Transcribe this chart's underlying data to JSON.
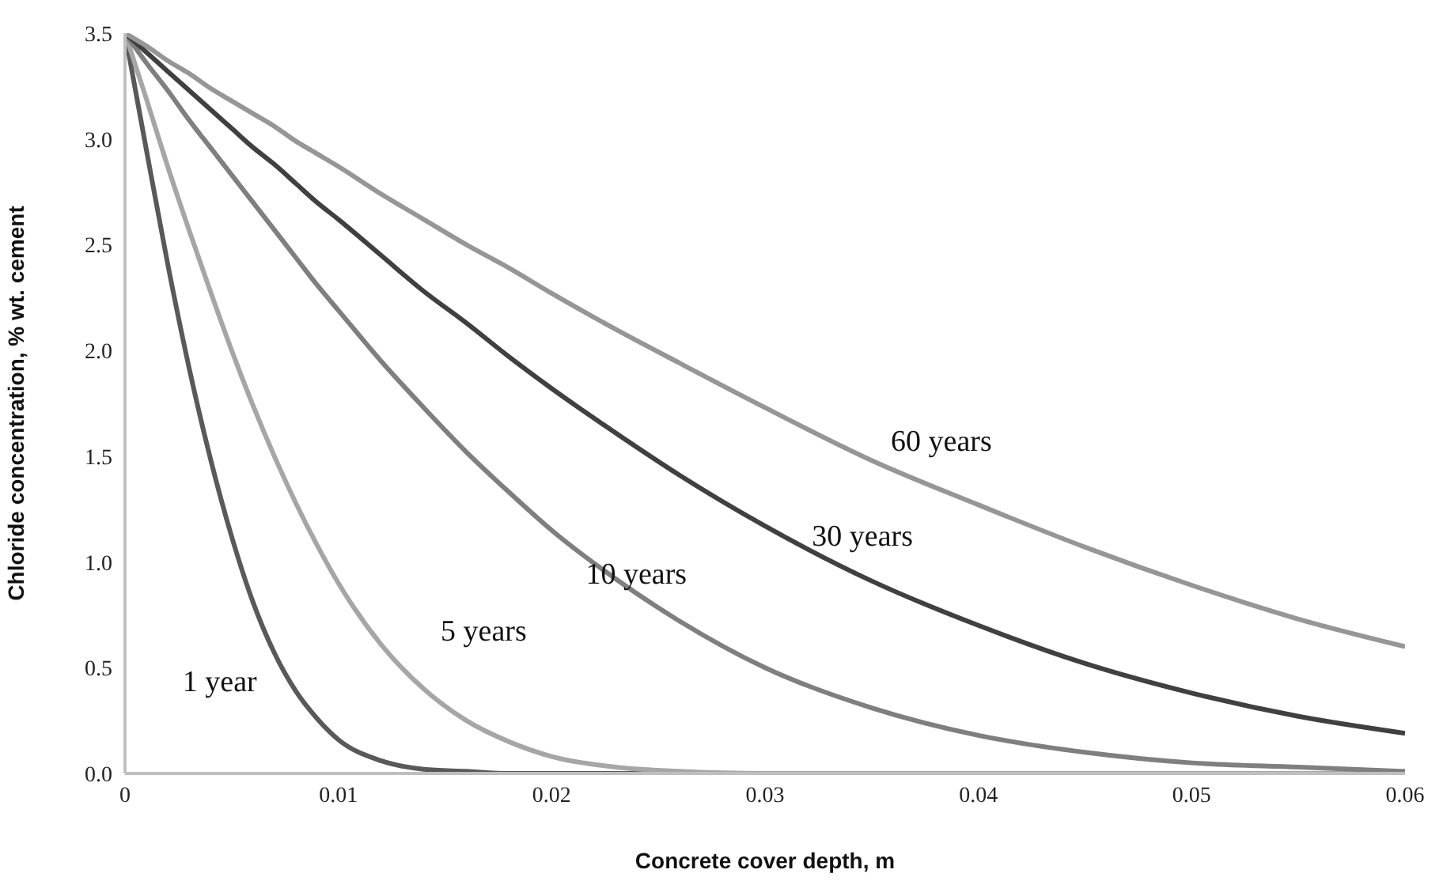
{
  "chart_data": {
    "type": "line",
    "xlabel": "Concrete cover depth, m",
    "ylabel": "Chloride concentration, % wt. cement",
    "x": [
      0,
      0.001,
      0.002,
      0.003,
      0.004,
      0.005,
      0.006,
      0.007,
      0.008,
      0.009,
      0.01,
      0.012,
      0.014,
      0.016,
      0.018,
      0.02,
      0.023,
      0.026,
      0.03,
      0.035,
      0.04,
      0.045,
      0.05,
      0.055,
      0.06
    ],
    "series": [
      {
        "name": "1 year",
        "color": "#595959",
        "values": [
          3.5,
          2.95,
          2.41,
          1.92,
          1.49,
          1.12,
          0.81,
          0.57,
          0.39,
          0.26,
          0.16,
          0.06,
          0.02,
          0.01,
          0,
          0,
          0,
          0,
          0,
          0,
          0,
          0,
          0,
          0,
          0
        ]
      },
      {
        "name": "5 years",
        "color": "#a6a6a6",
        "values": [
          3.5,
          3.19,
          2.87,
          2.57,
          2.28,
          2.0,
          1.74,
          1.5,
          1.28,
          1.08,
          0.9,
          0.61,
          0.4,
          0.25,
          0.15,
          0.08,
          0.03,
          0.01,
          0,
          0,
          0,
          0,
          0,
          0,
          0
        ]
      },
      {
        "name": "10 years",
        "color": "#7f7f7f",
        "values": [
          3.5,
          3.36,
          3.23,
          3.09,
          2.96,
          2.83,
          2.7,
          2.57,
          2.44,
          2.31,
          2.19,
          1.95,
          1.73,
          1.52,
          1.33,
          1.15,
          0.92,
          0.72,
          0.5,
          0.31,
          0.18,
          0.1,
          0.05,
          0.03,
          0.01
        ]
      },
      {
        "name": "30 years",
        "color": "#404040",
        "values": [
          3.5,
          3.41,
          3.32,
          3.23,
          3.14,
          3.05,
          2.96,
          2.88,
          2.79,
          2.7,
          2.62,
          2.45,
          2.28,
          2.13,
          1.97,
          1.82,
          1.61,
          1.41,
          1.17,
          0.91,
          0.7,
          0.52,
          0.38,
          0.27,
          0.19
        ]
      },
      {
        "name": "60 years",
        "color": "#969696",
        "values": [
          3.5,
          3.44,
          3.37,
          3.31,
          3.24,
          3.18,
          3.12,
          3.06,
          2.99,
          2.93,
          2.87,
          2.74,
          2.62,
          2.5,
          2.39,
          2.27,
          2.1,
          1.94,
          1.73,
          1.48,
          1.27,
          1.07,
          0.89,
          0.73,
          0.6
        ]
      }
    ],
    "xlim": [
      0,
      0.06
    ],
    "xticks": [
      0,
      0.01,
      0.02,
      0.03,
      0.04,
      0.05,
      0.06
    ],
    "ylim": [
      0,
      3.5
    ],
    "yticks": [
      {
        "value": 0,
        "label": "0.0"
      },
      {
        "value": 0.5,
        "label": "0.5"
      },
      {
        "value": 1,
        "label": "1.0"
      },
      {
        "value": 1.5,
        "label": "1.5"
      },
      {
        "value": 2,
        "label": "2.0"
      },
      {
        "value": 2.5,
        "label": "2.5"
      },
      {
        "value": 3,
        "label": "3.0"
      },
      {
        "value": 3.5,
        "label": "3.5"
      }
    ],
    "grid": false,
    "legend": false,
    "marker": "none",
    "line_style": "solid"
  }
}
